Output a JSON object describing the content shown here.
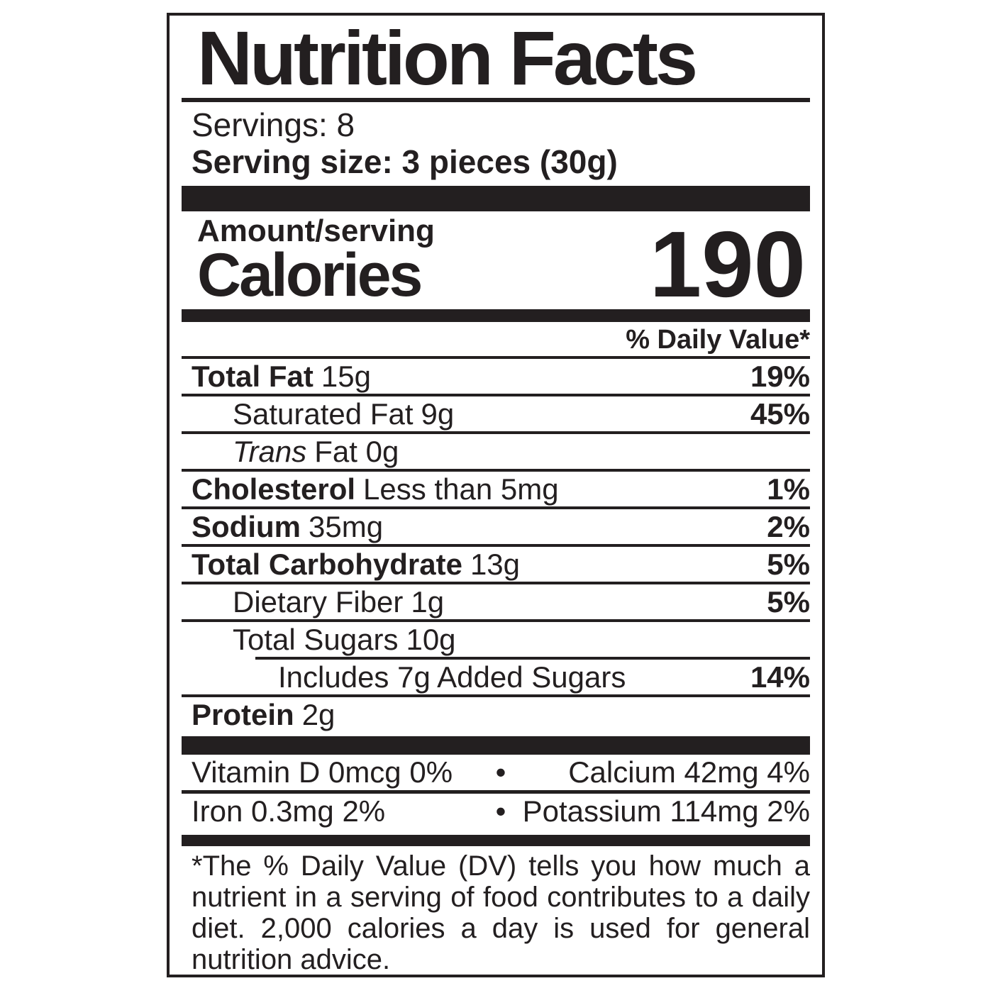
{
  "colors": {
    "ink": "#231f20",
    "paper": "#ffffff"
  },
  "nutrition_label": {
    "title": "Nutrition Facts",
    "servings": "Servings: 8",
    "serving_size": "Serving size: 3 pieces (30g)",
    "calories_section": {
      "header": "Amount/serving",
      "label": "Calories",
      "value": "190"
    },
    "daily_value_header": "% Daily Value*",
    "nutrients": [
      {
        "name": "Total Fat",
        "amount": "15g",
        "dv": "19%"
      },
      {
        "name": "Saturated Fat",
        "amount": "9g",
        "dv": "45%"
      },
      {
        "name": "Trans",
        "amount": "Fat 0g",
        "dv": ""
      },
      {
        "name": "Cholesterol",
        "amount": "Less than 5mg",
        "dv": "1%"
      },
      {
        "name": "Sodium",
        "amount": "35mg",
        "dv": "2%"
      },
      {
        "name": "Total Carbohydrate",
        "amount": "13g",
        "dv": "5%"
      },
      {
        "name": "Dietary Fiber",
        "amount": "1g",
        "dv": "5%"
      },
      {
        "name": "Total Sugars",
        "amount": "10g",
        "dv": ""
      },
      {
        "name": "Includes 7g Added Sugars",
        "amount": "",
        "dv": "14%"
      },
      {
        "name": "Protein",
        "amount": "2g",
        "dv": ""
      }
    ],
    "micronutrients": {
      "bullet": "•",
      "rows": [
        {
          "left": "Vitamin D 0mcg 0%",
          "right": "Calcium 42mg 4%"
        },
        {
          "left": "Iron 0.3mg 2%",
          "right": "Potassium 114mg 2%"
        }
      ]
    },
    "footnote": "*The % Daily Value (DV) tells you how much a nutrient in a serving of food contributes to a daily diet. 2,000 calories a day is used for general nutrition advice."
  }
}
